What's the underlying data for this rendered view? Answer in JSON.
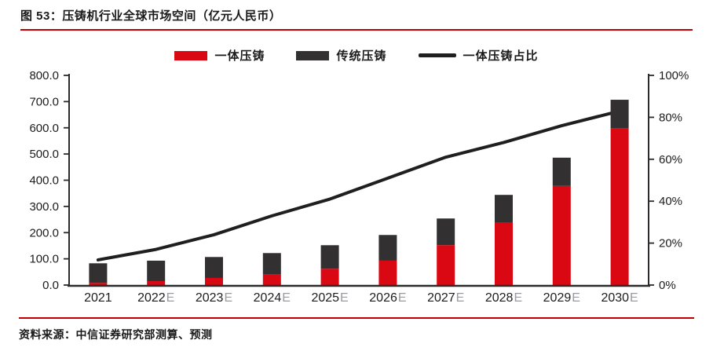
{
  "title": "图 53：压铸机行业全球市场空间（亿元人民币）",
  "source": "资料来源：中信证券研究部测算、预测",
  "colors": {
    "accent_rule_red": "#c00000",
    "bar_red": "#da0812",
    "bar_dark": "#323031",
    "trend_line": "#1f1f1f",
    "axis": "#2b2b2b",
    "tick_text": "#1c1c1c",
    "estimate_suffix_gray": "#9a9aa0"
  },
  "legend": [
    {
      "label": "一体压铸",
      "swatch": "red-rect"
    },
    {
      "label": "传统压铸",
      "swatch": "dark-rect"
    },
    {
      "label": "一体压铸占比",
      "swatch": "black-line"
    }
  ],
  "chart_data": {
    "type": "bar",
    "subtype": "stacked-bars-with-line",
    "title": "压铸机行业全球市场空间（亿元人民币）",
    "categories": [
      "2021",
      "2022E",
      "2023E",
      "2024E",
      "2025E",
      "2026E",
      "2027E",
      "2028E",
      "2029E",
      "2030E"
    ],
    "series": [
      {
        "name": "一体压铸",
        "type": "bar",
        "stack": "total",
        "color": "#da0812",
        "values": [
          8,
          15,
          27,
          40,
          62,
          93,
          152,
          238,
          378,
          597
        ]
      },
      {
        "name": "传统压铸",
        "type": "bar",
        "stack": "total",
        "color": "#323031",
        "values": [
          75,
          78,
          80,
          82,
          90,
          98,
          102,
          106,
          108,
          110
        ]
      },
      {
        "name": "一体压铸占比",
        "type": "line",
        "axis": "right",
        "color": "#1f1f1f",
        "unit": "%",
        "values": [
          12,
          17,
          24,
          33,
          41,
          51,
          61,
          68,
          76,
          83
        ]
      }
    ],
    "left_axis": {
      "min": 0,
      "max": 800,
      "step": 100,
      "ticks": [
        "0.0",
        "100.0",
        "200.0",
        "300.0",
        "400.0",
        "500.0",
        "600.0",
        "700.0",
        "800.0"
      ]
    },
    "right_axis": {
      "min": 0,
      "max": 100,
      "step": 20,
      "ticks": [
        "0%",
        "20%",
        "40%",
        "60%",
        "80%",
        "100%"
      ]
    },
    "grid": false,
    "legend_position": "top-center"
  }
}
